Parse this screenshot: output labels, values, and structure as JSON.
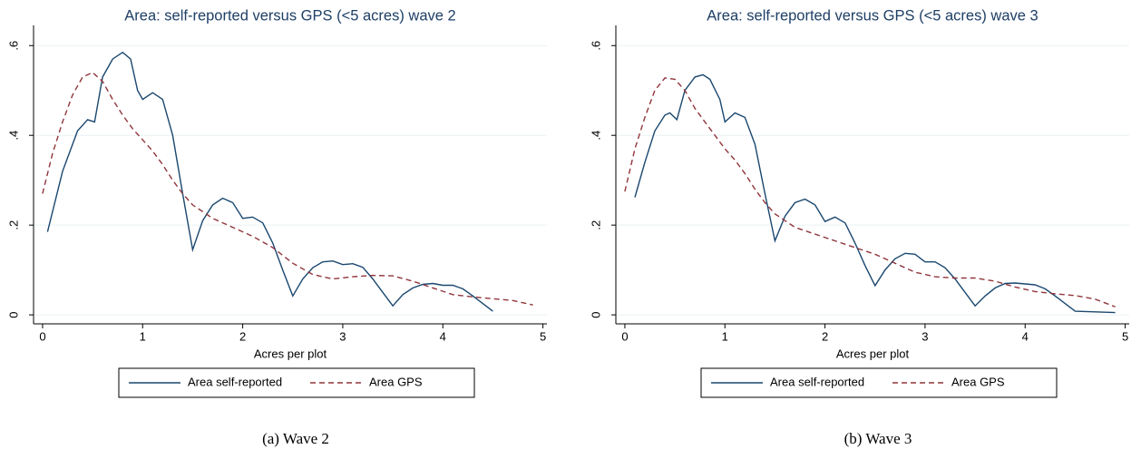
{
  "chart_data": [
    {
      "type": "line",
      "title": "Area: self-reported versus GPS (<5 acres) wave 2",
      "x_label": "Acres per plot",
      "caption": "(a) Wave 2",
      "xlim": [
        -0.09,
        5.04
      ],
      "ylim": [
        -0.02,
        0.645
      ],
      "xticks": [
        0,
        1,
        2,
        3,
        4,
        5
      ],
      "yticks": [
        0,
        {
          "value": 0.2,
          "label": ".2"
        },
        {
          "value": 0.4,
          "label": ".4"
        },
        {
          "value": 0.6,
          "label": ".6"
        }
      ],
      "grid": true,
      "series": [
        {
          "name": "Area self-reported",
          "color": "#1a476f",
          "line_style": "solid",
          "x": [
            0.05,
            0.2,
            0.35,
            0.45,
            0.52,
            0.6,
            0.7,
            0.8,
            0.88,
            0.95,
            1.0,
            1.1,
            1.2,
            1.3,
            1.4,
            1.5,
            1.6,
            1.7,
            1.8,
            1.9,
            2.0,
            2.1,
            2.2,
            2.3,
            2.4,
            2.5,
            2.6,
            2.7,
            2.8,
            2.9,
            3.0,
            3.1,
            3.2,
            3.3,
            3.4,
            3.5,
            3.6,
            3.7,
            3.8,
            3.9,
            4.0,
            4.1,
            4.2,
            4.3,
            4.4,
            4.5
          ],
          "values": [
            0.185,
            0.32,
            0.41,
            0.435,
            0.43,
            0.53,
            0.57,
            0.585,
            0.57,
            0.5,
            0.48,
            0.495,
            0.48,
            0.4,
            0.27,
            0.145,
            0.21,
            0.245,
            0.26,
            0.25,
            0.215,
            0.218,
            0.205,
            0.16,
            0.1,
            0.042,
            0.08,
            0.105,
            0.118,
            0.12,
            0.112,
            0.114,
            0.106,
            0.08,
            0.05,
            0.02,
            0.045,
            0.06,
            0.068,
            0.07,
            0.066,
            0.066,
            0.058,
            0.042,
            0.025,
            0.008
          ]
        },
        {
          "name": "Area GPS",
          "color": "#90353b",
          "line_style": "dashed",
          "x": [
            0.0,
            0.1,
            0.2,
            0.3,
            0.4,
            0.5,
            0.6,
            0.7,
            0.8,
            0.9,
            1.0,
            1.1,
            1.2,
            1.3,
            1.4,
            1.5,
            1.7,
            1.9,
            2.1,
            2.3,
            2.5,
            2.7,
            2.9,
            3.1,
            3.3,
            3.5,
            3.7,
            3.9,
            4.1,
            4.3,
            4.5,
            4.7,
            4.9
          ],
          "values": [
            0.27,
            0.36,
            0.43,
            0.49,
            0.53,
            0.54,
            0.52,
            0.48,
            0.445,
            0.415,
            0.39,
            0.365,
            0.335,
            0.3,
            0.27,
            0.245,
            0.215,
            0.195,
            0.175,
            0.15,
            0.115,
            0.09,
            0.08,
            0.085,
            0.088,
            0.087,
            0.075,
            0.06,
            0.045,
            0.04,
            0.036,
            0.032,
            0.022
          ]
        }
      ]
    },
    {
      "type": "line",
      "title": "Area: self-reported versus GPS (<5 acres) wave 3",
      "x_label": "Acres per plot",
      "caption": "(b) Wave 3",
      "xlim": [
        -0.09,
        5.04
      ],
      "ylim": [
        -0.02,
        0.645
      ],
      "xticks": [
        0,
        1,
        2,
        3,
        4,
        5
      ],
      "yticks": [
        0,
        {
          "value": 0.2,
          "label": ".2"
        },
        {
          "value": 0.4,
          "label": ".4"
        },
        {
          "value": 0.6,
          "label": ".6"
        }
      ],
      "grid": true,
      "series": [
        {
          "name": "Area self-reported",
          "color": "#1a476f",
          "line_style": "solid",
          "x": [
            0.1,
            0.2,
            0.3,
            0.4,
            0.45,
            0.52,
            0.6,
            0.7,
            0.78,
            0.85,
            0.95,
            1.0,
            1.1,
            1.2,
            1.3,
            1.4,
            1.5,
            1.6,
            1.7,
            1.8,
            1.9,
            2.0,
            2.1,
            2.2,
            2.3,
            2.4,
            2.5,
            2.6,
            2.7,
            2.8,
            2.9,
            3.0,
            3.1,
            3.2,
            3.3,
            3.4,
            3.5,
            3.6,
            3.7,
            3.8,
            3.9,
            4.0,
            4.1,
            4.2,
            4.3,
            4.4,
            4.5,
            4.9
          ],
          "values": [
            0.262,
            0.34,
            0.41,
            0.445,
            0.45,
            0.435,
            0.5,
            0.53,
            0.535,
            0.525,
            0.48,
            0.43,
            0.45,
            0.44,
            0.38,
            0.27,
            0.165,
            0.22,
            0.25,
            0.258,
            0.245,
            0.208,
            0.218,
            0.205,
            0.16,
            0.11,
            0.065,
            0.1,
            0.125,
            0.137,
            0.135,
            0.118,
            0.118,
            0.105,
            0.08,
            0.05,
            0.02,
            0.042,
            0.06,
            0.07,
            0.071,
            0.069,
            0.067,
            0.058,
            0.042,
            0.025,
            0.008,
            0.005
          ]
        },
        {
          "name": "Area GPS",
          "color": "#90353b",
          "line_style": "dashed",
          "x": [
            0.0,
            0.1,
            0.2,
            0.3,
            0.4,
            0.5,
            0.6,
            0.7,
            0.8,
            0.9,
            1.0,
            1.1,
            1.2,
            1.3,
            1.4,
            1.5,
            1.7,
            1.9,
            2.1,
            2.3,
            2.5,
            2.7,
            2.9,
            3.1,
            3.3,
            3.5,
            3.7,
            3.9,
            4.1,
            4.3,
            4.5,
            4.7,
            4.9
          ],
          "values": [
            0.275,
            0.37,
            0.44,
            0.5,
            0.528,
            0.525,
            0.5,
            0.46,
            0.43,
            0.4,
            0.37,
            0.345,
            0.315,
            0.28,
            0.25,
            0.225,
            0.195,
            0.18,
            0.165,
            0.15,
            0.135,
            0.115,
            0.095,
            0.085,
            0.082,
            0.082,
            0.075,
            0.062,
            0.052,
            0.047,
            0.043,
            0.035,
            0.018
          ]
        }
      ]
    }
  ]
}
